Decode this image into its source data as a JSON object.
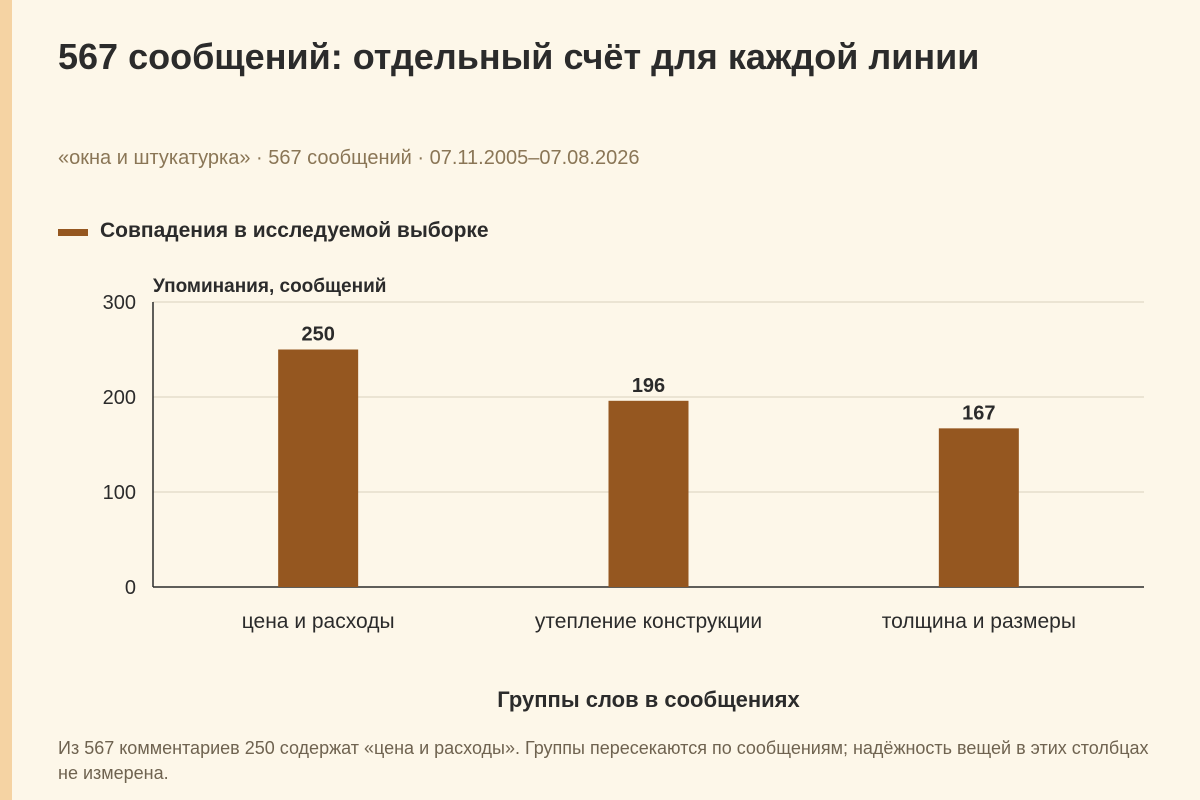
{
  "header": {
    "title": "567 сообщений: отдельный счёт для каждой линии",
    "subtitle": "«окна и штукатурка» · 567 сообщений · 07.11.2005–07.08.2026"
  },
  "footer": {
    "note": "Из 567 комментариев 250 содержат «цена и расходы». Группы пересекаются по сообщениям; надёжность вещей в этих столбцах не измерена."
  },
  "colors": {
    "bar": "#955720",
    "background": "#fdf7e9",
    "accent": "#f5d3a3"
  },
  "chart_data": {
    "type": "bar",
    "categories": [
      "цена и расходы",
      "утепление конструкции",
      "толщина и размеры"
    ],
    "series": [
      {
        "name": "Совпадения в исследуемой выборке",
        "values": [
          250,
          196,
          167
        ]
      }
    ],
    "data_labels": [
      "250",
      "196",
      "167"
    ],
    "xlabel": "Группы слов в сообщениях",
    "ylabel": "Упоминания, сообщений",
    "ylim": [
      0,
      300
    ],
    "yticks": [
      0,
      100,
      200,
      300
    ],
    "grid": true,
    "legend": "top-left"
  }
}
